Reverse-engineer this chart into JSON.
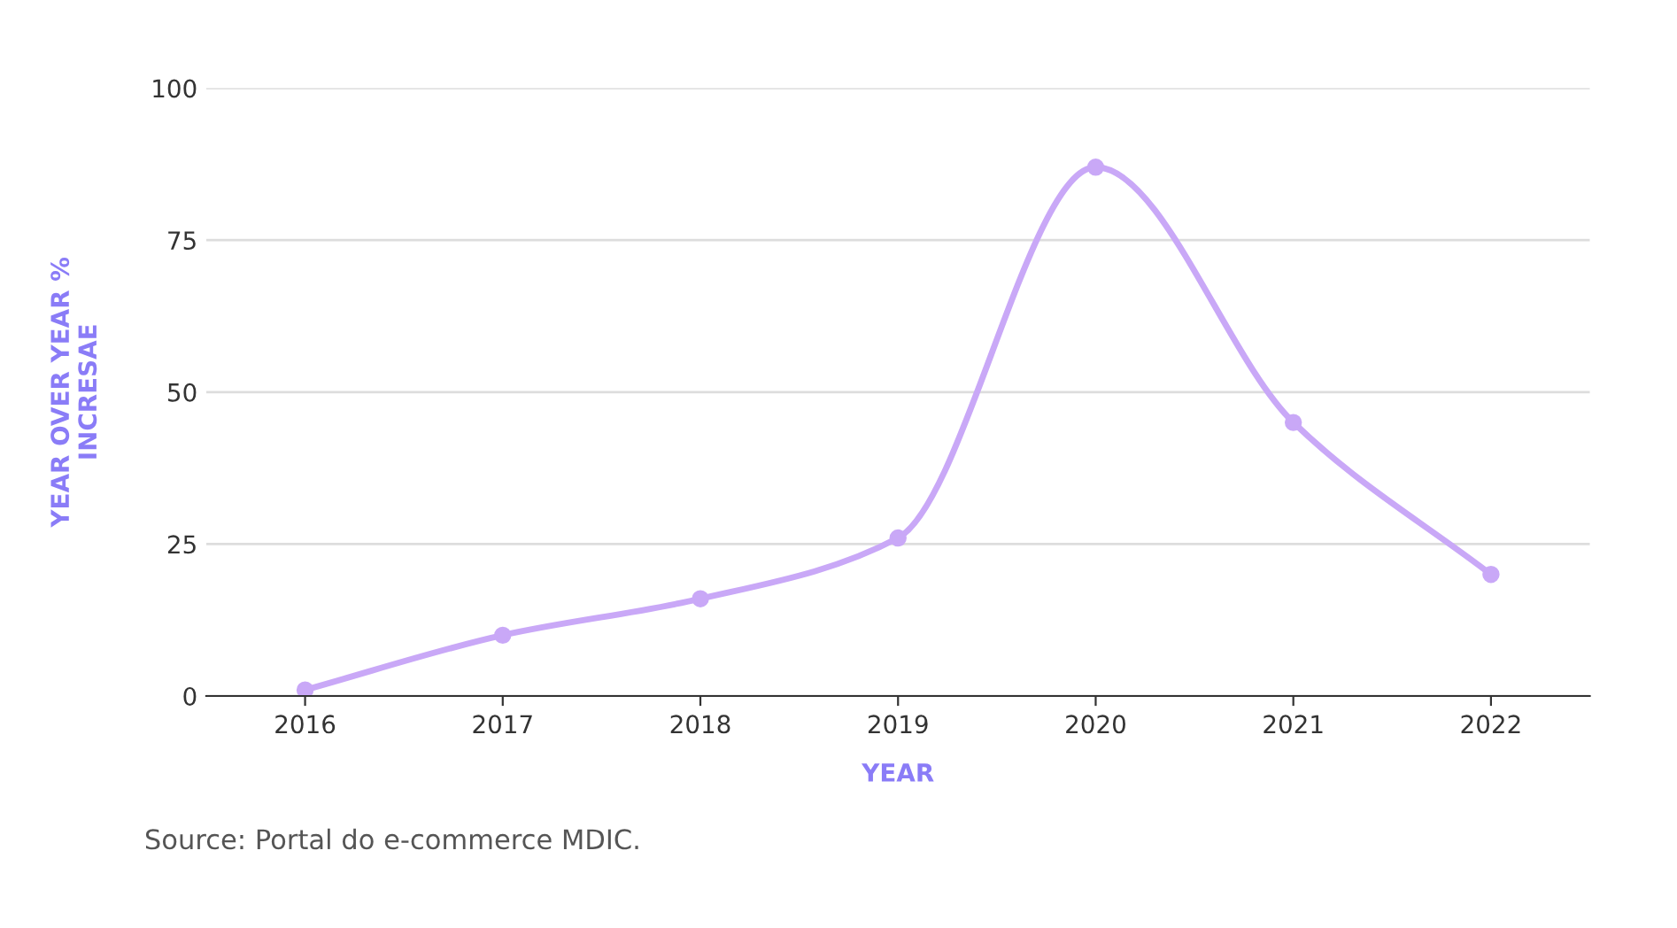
{
  "chart_data": {
    "type": "line",
    "categories": [
      "2016",
      "2017",
      "2018",
      "2019",
      "2020",
      "2021",
      "2022"
    ],
    "series": [
      {
        "color": "#c9a8f7",
        "values": [
          1,
          10,
          16,
          26,
          87,
          45,
          20
        ]
      }
    ],
    "ylabel": "YEAR OVER YEAR %\nINCRESAE",
    "xlabel": "YEAR",
    "ylim": [
      0,
      100
    ],
    "yticks": [
      0,
      25,
      50,
      75,
      100
    ],
    "grid": "y",
    "marker": "circle",
    "annotations": [
      "Source: Portal do e-commerce MDIC."
    ]
  }
}
